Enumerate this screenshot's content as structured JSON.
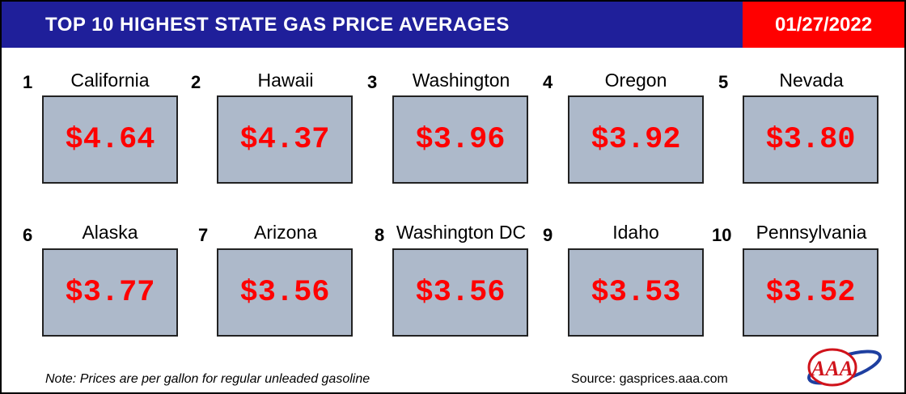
{
  "header": {
    "title": "TOP 10 HIGHEST STATE GAS PRICE AVERAGES",
    "date": "01/27/2022",
    "title_bg": "#1f1f9a",
    "date_bg": "#ff0000"
  },
  "items": [
    {
      "rank": "1",
      "state": "California",
      "price": "$4.64"
    },
    {
      "rank": "2",
      "state": "Hawaii",
      "price": "$4.37"
    },
    {
      "rank": "3",
      "state": "Washington",
      "price": "$3.96"
    },
    {
      "rank": "4",
      "state": "Oregon",
      "price": "$3.92"
    },
    {
      "rank": "5",
      "state": "Nevada",
      "price": "$3.80"
    },
    {
      "rank": "6",
      "state": "Alaska",
      "price": "$3.77"
    },
    {
      "rank": "7",
      "state": "Arizona",
      "price": "$3.56"
    },
    {
      "rank": "8",
      "state": "Washington DC",
      "price": "$3.56"
    },
    {
      "rank": "9",
      "state": "Idaho",
      "price": "$3.53"
    },
    {
      "rank": "10",
      "state": "Pennsylvania",
      "price": "$3.52"
    }
  ],
  "footer": {
    "note": "Note: Prices are per gallon for regular unleaded gasoline",
    "source": "Source: gasprices.aaa.com",
    "logo_text": "AAA"
  },
  "colors": {
    "price_text": "#ff0000",
    "box_fill": "#adb9ca"
  }
}
